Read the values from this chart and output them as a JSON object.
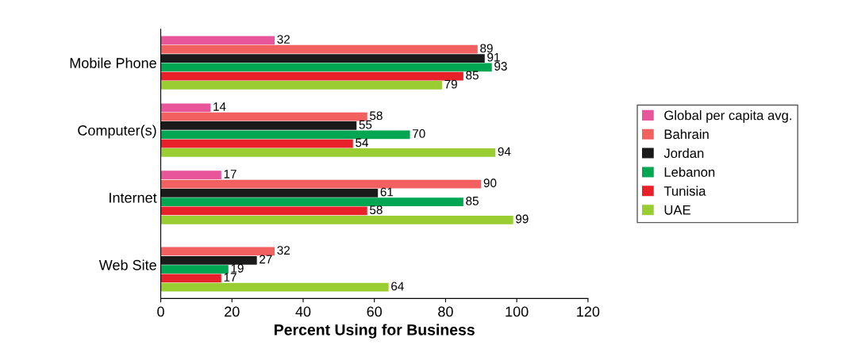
{
  "chart_data": {
    "type": "bar",
    "orientation": "horizontal",
    "xlabel": "Percent Using for Business",
    "categories": [
      "Mobile Phone",
      "Computer(s)",
      "Internet",
      "Web Site"
    ],
    "series": [
      {
        "name": "Global per capita avg.",
        "color": "#e8559b",
        "values": [
          32,
          14,
          17,
          null
        ]
      },
      {
        "name": "Bahrain",
        "color": "#f26060",
        "values": [
          89,
          58,
          90,
          32
        ]
      },
      {
        "name": "Jordan",
        "color": "#1a1a1a",
        "values": [
          91,
          55,
          61,
          27
        ]
      },
      {
        "name": "Lebanon",
        "color": "#00a651",
        "values": [
          93,
          70,
          85,
          19
        ]
      },
      {
        "name": "Tunisia",
        "color": "#e8202a",
        "values": [
          85,
          54,
          58,
          17
        ]
      },
      {
        "name": "UAE",
        "color": "#9acd32",
        "values": [
          79,
          94,
          99,
          64
        ]
      }
    ],
    "xlim": [
      0,
      120
    ],
    "xticks": [
      0,
      20,
      40,
      60,
      80,
      100,
      120
    ],
    "data_labels": true,
    "grid": false,
    "legend": "right"
  }
}
